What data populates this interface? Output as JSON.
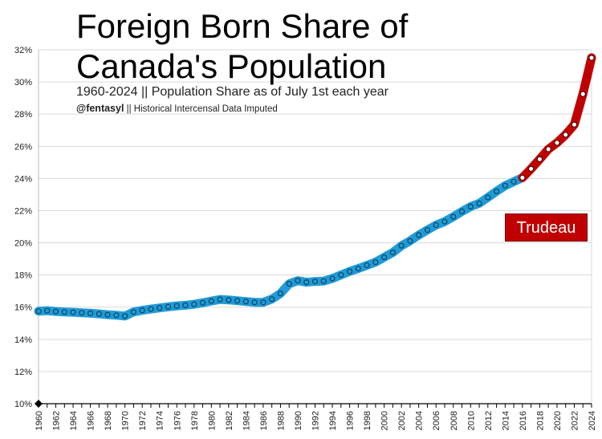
{
  "title_line1": "Foreign Born Share of",
  "title_line2": "Canada's Population",
  "subtitle": "1960-2024 || Population Share as of July 1st each year",
  "credit_handle": "@fentasyl",
  "credit_note": " || Historical Intercensal Data Imputed",
  "annotation_label": "Trudeau",
  "colors": {
    "blue": "#1f9bd7",
    "red": "#c00000",
    "grid": "#d9d9d9"
  },
  "chart_data": {
    "type": "line",
    "title": "Foreign Born Share of Canada's Population",
    "subtitle": "1960-2024 || Population Share as of July 1st each year",
    "xlabel": "",
    "ylabel": "",
    "xlim": [
      1960,
      2024
    ],
    "ylim": [
      10,
      32
    ],
    "y_ticks": [
      10,
      12,
      14,
      16,
      18,
      20,
      22,
      24,
      26,
      28,
      30,
      32
    ],
    "y_tick_suffix": "%",
    "x_ticks": [
      1960,
      1962,
      1964,
      1966,
      1968,
      1970,
      1972,
      1974,
      1976,
      1978,
      1980,
      1982,
      1984,
      1986,
      1988,
      1990,
      1992,
      1994,
      1996,
      1998,
      2000,
      2002,
      2004,
      2006,
      2008,
      2010,
      2012,
      2014,
      2016,
      2018,
      2020,
      2022,
      2024
    ],
    "grid": true,
    "x": [
      1960,
      1961,
      1962,
      1963,
      1964,
      1965,
      1966,
      1967,
      1968,
      1969,
      1970,
      1971,
      1972,
      1973,
      1974,
      1975,
      1976,
      1977,
      1978,
      1979,
      1980,
      1981,
      1982,
      1983,
      1984,
      1985,
      1986,
      1987,
      1988,
      1989,
      1990,
      1991,
      1992,
      1993,
      1994,
      1995,
      1996,
      1997,
      1998,
      1999,
      2000,
      2001,
      2002,
      2003,
      2004,
      2005,
      2006,
      2007,
      2008,
      2009,
      2010,
      2011,
      2012,
      2013,
      2014,
      2015,
      2016,
      2017,
      2018,
      2019,
      2020,
      2021,
      2022,
      2023,
      2024
    ],
    "y": [
      15.75,
      15.78,
      15.73,
      15.7,
      15.68,
      15.65,
      15.62,
      15.58,
      15.53,
      15.5,
      15.45,
      15.7,
      15.8,
      15.88,
      15.95,
      16.02,
      16.08,
      16.12,
      16.18,
      16.27,
      16.38,
      16.48,
      16.45,
      16.4,
      16.35,
      16.3,
      16.3,
      16.5,
      16.85,
      17.45,
      17.65,
      17.55,
      17.6,
      17.62,
      17.78,
      18.0,
      18.22,
      18.4,
      18.6,
      18.8,
      19.1,
      19.4,
      19.82,
      20.12,
      20.48,
      20.8,
      21.1,
      21.32,
      21.62,
      21.95,
      22.25,
      22.45,
      22.82,
      23.2,
      23.55,
      23.8,
      24.05,
      24.6,
      25.2,
      25.82,
      26.22,
      26.72,
      27.35,
      29.25,
      31.5
    ],
    "segments": [
      {
        "from": 1960,
        "to": 2016,
        "color": "#1f9bd7"
      },
      {
        "from": 2016,
        "to": 2024,
        "color": "#c00000",
        "label": "Trudeau"
      }
    ]
  }
}
